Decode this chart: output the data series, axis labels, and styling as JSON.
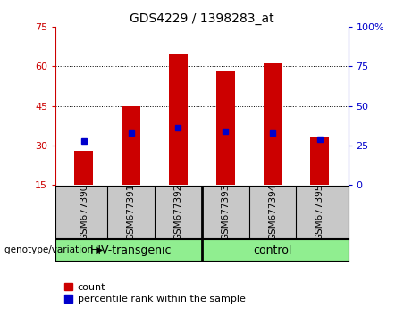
{
  "title": "GDS4229 / 1398283_at",
  "categories": [
    "GSM677390",
    "GSM677391",
    "GSM677392",
    "GSM677393",
    "GSM677394",
    "GSM677395"
  ],
  "bar_heights": [
    28,
    45,
    65,
    58,
    61,
    33
  ],
  "bar_bottom": 15,
  "percentile_values": [
    28,
    33,
    36,
    34,
    33,
    29
  ],
  "bar_color": "#cc0000",
  "pct_color": "#0000cc",
  "ylim_left": [
    15,
    75
  ],
  "ylim_right": [
    0,
    100
  ],
  "yticks_left": [
    15,
    30,
    45,
    60,
    75
  ],
  "yticks_right": [
    0,
    25,
    50,
    75,
    100
  ],
  "ytick_labels_right": [
    "0",
    "25",
    "50",
    "75",
    "100%"
  ],
  "grid_lines": [
    30,
    45,
    60
  ],
  "groups": [
    {
      "label": "HIV-transgenic",
      "span": [
        0,
        2
      ]
    },
    {
      "label": "control",
      "span": [
        3,
        5
      ]
    }
  ],
  "group_label": "genotype/variation",
  "legend_count_label": "count",
  "legend_pct_label": "percentile rank within the sample",
  "label_area_color": "#c8c8c8",
  "group_row_color": "#90ee90",
  "plot_bg_color": "#ffffff",
  "bar_width": 0.4
}
